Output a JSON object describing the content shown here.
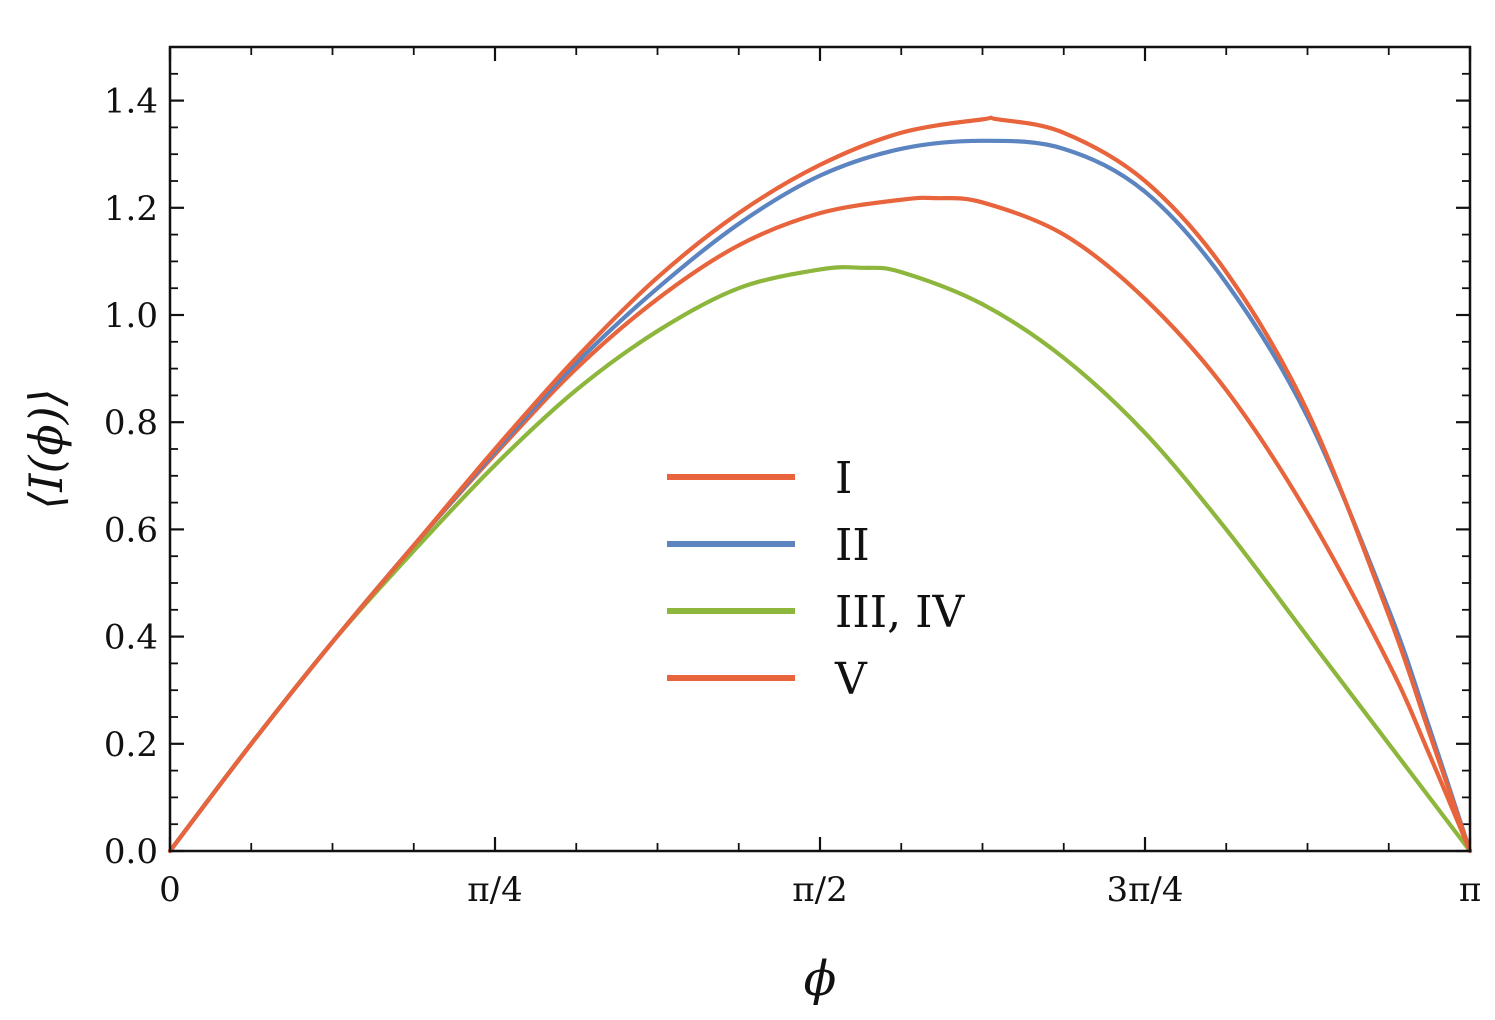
{
  "chart_data": {
    "type": "line",
    "xlabel": "ϕ",
    "ylabel": "⟨I(ϕ)⟩",
    "xlim": [
      0,
      3.14159
    ],
    "ylim": [
      0,
      1.5
    ],
    "x_ticks": [
      {
        "value": 0,
        "label": "0"
      },
      {
        "value": 0.7854,
        "label": "π/4"
      },
      {
        "value": 1.5708,
        "label": "π/2"
      },
      {
        "value": 2.3562,
        "label": "3π/4"
      },
      {
        "value": 3.14159,
        "label": "π"
      }
    ],
    "y_ticks": [
      {
        "value": 0.0,
        "label": "0.0"
      },
      {
        "value": 0.2,
        "label": "0.2"
      },
      {
        "value": 0.4,
        "label": "0.4"
      },
      {
        "value": 0.6,
        "label": "0.6"
      },
      {
        "value": 0.8,
        "label": "0.8"
      },
      {
        "value": 1.0,
        "label": "1.0"
      },
      {
        "value": 1.2,
        "label": "1.2"
      },
      {
        "value": 1.4,
        "label": "1.4"
      }
    ],
    "legend_position": "center",
    "series": [
      {
        "name": "I",
        "color": "#e8643c",
        "x": [
          0,
          0.1963,
          0.3927,
          0.589,
          0.7854,
          0.9817,
          1.1781,
          1.3744,
          1.5708,
          1.7671,
          1.9635,
          2.0,
          2.1598,
          2.3562,
          2.5525,
          2.7489,
          2.9452,
          3.0434,
          3.14159
        ],
        "y": [
          0,
          0.2,
          0.39,
          0.57,
          0.75,
          0.92,
          1.07,
          1.19,
          1.28,
          1.34,
          1.365,
          1.365,
          1.34,
          1.25,
          1.08,
          0.82,
          0.44,
          0.22,
          0
        ]
      },
      {
        "name": "II",
        "color": "#5b84c0",
        "x": [
          0,
          0.1963,
          0.3927,
          0.589,
          0.7854,
          0.9817,
          1.1781,
          1.3744,
          1.5708,
          1.7671,
          1.9635,
          2.1598,
          2.3562,
          2.5525,
          2.7489,
          2.9452,
          3.0434,
          3.14159
        ],
        "y": [
          0,
          0.2,
          0.39,
          0.57,
          0.745,
          0.91,
          1.05,
          1.17,
          1.26,
          1.31,
          1.325,
          1.31,
          1.23,
          1.06,
          0.81,
          0.45,
          0.23,
          0
        ]
      },
      {
        "name": "III, IV",
        "color": "#8db63c",
        "x": [
          0,
          0.1963,
          0.3927,
          0.589,
          0.7854,
          0.9817,
          1.1781,
          1.3744,
          1.5708,
          1.6749,
          1.7671,
          1.9635,
          2.1598,
          2.3562,
          2.5525,
          2.7489,
          2.9452,
          3.14159
        ],
        "y": [
          0,
          0.2,
          0.39,
          0.56,
          0.72,
          0.86,
          0.97,
          1.05,
          1.085,
          1.088,
          1.08,
          1.02,
          0.92,
          0.78,
          0.6,
          0.4,
          0.2,
          0
        ]
      },
      {
        "name": "V",
        "color": "#e8643c",
        "x": [
          0,
          0.1963,
          0.3927,
          0.589,
          0.7854,
          0.9817,
          1.1781,
          1.3744,
          1.5708,
          1.7671,
          1.85,
          1.9635,
          2.1598,
          2.3562,
          2.5525,
          2.7489,
          2.9452,
          3.0434,
          3.14159
        ],
        "y": [
          0,
          0.2,
          0.39,
          0.57,
          0.74,
          0.9,
          1.03,
          1.13,
          1.19,
          1.215,
          1.218,
          1.21,
          1.15,
          1.03,
          0.86,
          0.63,
          0.35,
          0.18,
          0
        ]
      }
    ]
  }
}
